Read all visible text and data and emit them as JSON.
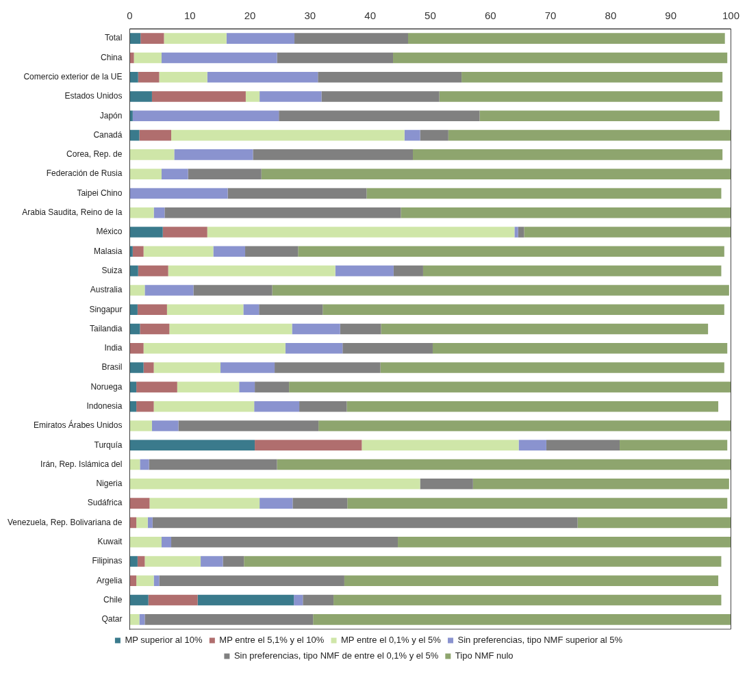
{
  "chart_data": {
    "type": "bar",
    "orientation": "horizontal",
    "stacked": true,
    "grid": false,
    "legend": "bottom",
    "categories": [
      "Total",
      "China",
      "Comercio exterior de la UE",
      "Estados Unidos",
      "Japón",
      "Canadá",
      "Corea, Rep. de",
      "Federación de Rusia",
      "Taipei Chino",
      "Arabia Saudita, Reino de la",
      "México",
      "Malasia",
      "Suiza",
      "Australia",
      "Singapur",
      "Tailandia",
      "India",
      "Brasil",
      "Noruega",
      "Indonesia",
      "Emiratos Árabes Unidos",
      "Turquía",
      "Irán, Rep. Islámica del",
      "Nigeria",
      "Sudáfrica",
      "Venezuela, Rep. Bolivariana de",
      "Kuwait",
      "Filipinas",
      "Argelia",
      "Chile",
      "Qatar"
    ],
    "xlim": [
      0,
      100
    ],
    "xticks": [
      0,
      10,
      20,
      30,
      40,
      50,
      60,
      70,
      80,
      90,
      100
    ],
    "series": [
      {
        "name": "MP superior al 10%",
        "color": "#3a7a8c",
        "values": [
          1.8,
          0,
          1.4,
          3.7,
          0.5,
          1.6,
          0,
          0,
          0,
          0,
          5.5,
          0.5,
          1.4,
          0,
          1.3,
          1.7,
          0,
          2.3,
          1.1,
          1.1,
          0,
          20.8,
          0,
          0,
          0,
          0,
          0,
          1.3,
          0,
          3.1,
          0
        ]
      },
      {
        "name": "MP entre el 5,1% y el 10%",
        "color": "#b06e6e",
        "values": [
          3.9,
          0.7,
          3.5,
          15.6,
          0,
          5.3,
          0,
          0,
          0,
          0,
          7.4,
          1.8,
          5,
          0,
          4.9,
          4.9,
          2.3,
          1.7,
          6.8,
          2.9,
          0,
          17.8,
          0,
          0,
          3.3,
          1.1,
          0,
          1.2,
          1.1,
          8.2,
          0
        ]
      },
      {
        "color": "#3a7a8c",
        "values": [
          null,
          null,
          null,
          null,
          null,
          null,
          null,
          null,
          null,
          null,
          null,
          null,
          null,
          null,
          null,
          null,
          null,
          null,
          null,
          null,
          null,
          null,
          null,
          null,
          null,
          null,
          null,
          null,
          null,
          16,
          null
        ]
      },
      {
        "name": "MP entre el 0,1% y el 5%",
        "color": "#cfe6a8",
        "values": [
          10.4,
          4.6,
          8,
          2.3,
          0,
          38.8,
          7.4,
          5.3,
          0,
          4,
          51.1,
          11.6,
          27.8,
          2.5,
          12.7,
          20.4,
          23.6,
          11.1,
          10.3,
          16.7,
          3.7,
          26.1,
          1.7,
          48.3,
          18.3,
          1.9,
          5.3,
          9.3,
          2.9,
          0,
          1.6
        ]
      },
      {
        "name": "Sin preferencias, tipo NMF superior al 5%",
        "color": "#8a93cf",
        "values": [
          11.3,
          19.2,
          18.4,
          10.3,
          24.3,
          2.6,
          13.1,
          4.4,
          16.3,
          1.8,
          0.6,
          5.3,
          9.7,
          8.1,
          2.6,
          8,
          9.5,
          9,
          2.6,
          7.5,
          4.4,
          4.6,
          1.5,
          0,
          5.5,
          0.8,
          1.6,
          3.7,
          0.9,
          1.5,
          0.9
        ]
      },
      {
        "name": "Sin preferencias, tipo NMF de entre el 0,1% y el 5%",
        "color": "#808080",
        "values": [
          18.9,
          19.3,
          23.9,
          19.6,
          33.4,
          4.7,
          26.6,
          12.2,
          23.1,
          39.3,
          1,
          8.8,
          4.9,
          13.1,
          10.6,
          6.8,
          15,
          17.6,
          5.7,
          7.9,
          23.3,
          12.2,
          21.3,
          8.8,
          9.1,
          70.7,
          37.7,
          3.5,
          30.8,
          5.1,
          28
        ]
      },
      {
        "name": "Tipo NMF nulo",
        "color": "#8ea56e",
        "values": [
          52.7,
          55.6,
          43.4,
          47.1,
          39.9,
          47,
          51.5,
          78.1,
          59,
          54.9,
          34.4,
          70.9,
          49.6,
          76,
          66.8,
          54.4,
          49,
          57.2,
          73.5,
          61.8,
          68.6,
          17.9,
          75.5,
          42.6,
          63.2,
          25.5,
          55.4,
          79.4,
          62.2,
          64.5,
          69.5
        ]
      }
    ]
  }
}
